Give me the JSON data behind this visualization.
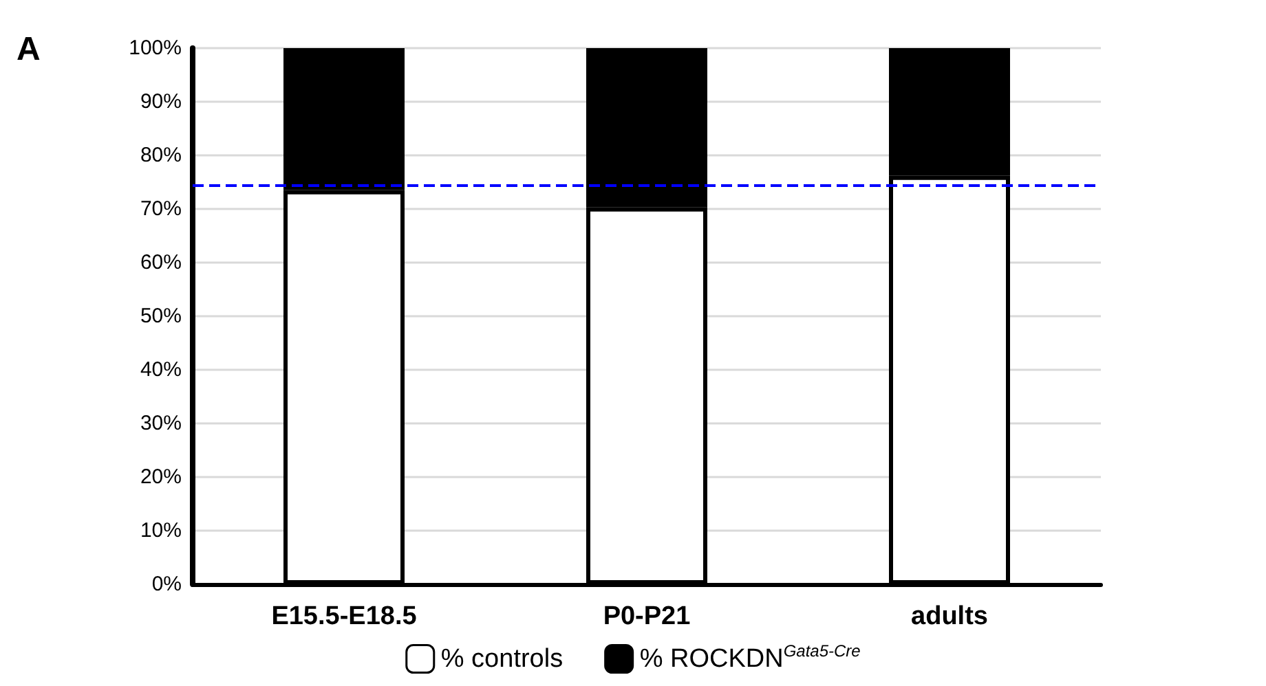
{
  "chart_data": {
    "type": "bar",
    "stacked": true,
    "categories": [
      "E15.5-E18.5",
      "P0-P21",
      "adults"
    ],
    "series": [
      {
        "name": "% controls",
        "color": "#ffffff",
        "values": [
          73.5,
          70.3,
          76.2
        ]
      },
      {
        "name": "% ROCKDN$^{Gata5-Cre}$",
        "color": "#000000",
        "values": [
          26.5,
          29.7,
          23.8
        ]
      }
    ],
    "ylim": [
      0,
      100
    ],
    "yticks": [
      {
        "value": 0,
        "label": "0%"
      },
      {
        "value": 10,
        "label": "10%"
      },
      {
        "value": 20,
        "label": "20%"
      },
      {
        "value": 30,
        "label": "30%"
      },
      {
        "value": 40,
        "label": "40%"
      },
      {
        "value": 50,
        "label": "50%"
      },
      {
        "value": 60,
        "label": "60%"
      },
      {
        "value": 70,
        "label": "70%"
      },
      {
        "value": 80,
        "label": "80%"
      },
      {
        "value": 90,
        "label": "90%"
      },
      {
        "value": 100,
        "label": "100%"
      }
    ],
    "ref_lines": [
      {
        "axis": "y",
        "value": 74.5,
        "color": "#0000ff",
        "line_style": "dashed"
      }
    ],
    "annotations": [
      "A"
    ],
    "grid": "y",
    "legend": "bottom"
  }
}
